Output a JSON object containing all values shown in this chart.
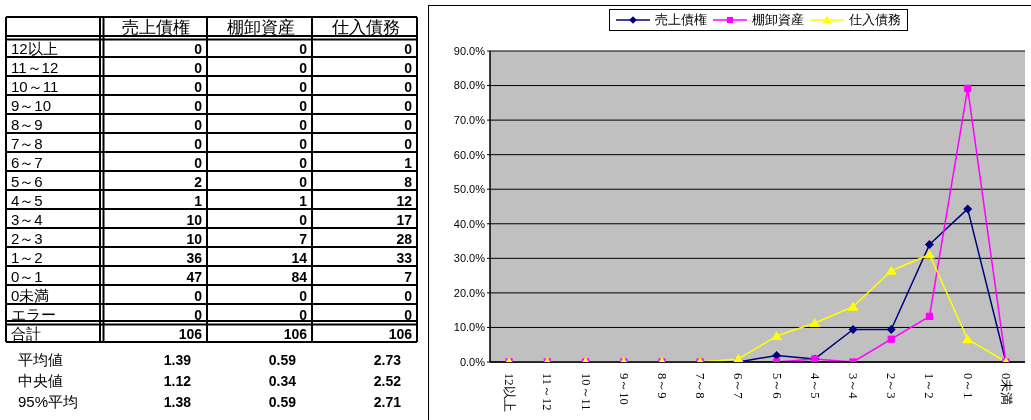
{
  "chart_data": [
    {
      "type": "heatmap",
      "categories": [
        "売上債権",
        "棚卸資産",
        "仕入債務"
      ],
      "y_categories": [
        "12以上",
        "11～12",
        "10～11",
        "9～10",
        "8～9",
        "7～8",
        "6～7",
        "5～6",
        "4～5",
        "3～4",
        "2～3",
        "1～2",
        "0～1",
        "0未満",
        "エラー",
        "合計"
      ],
      "cells": [
        [
          0,
          0,
          0
        ],
        [
          0,
          0,
          0
        ],
        [
          0,
          0,
          0
        ],
        [
          0,
          0,
          0
        ],
        [
          0,
          0,
          0
        ],
        [
          0,
          0,
          0
        ],
        [
          0,
          0,
          1
        ],
        [
          2,
          0,
          8
        ],
        [
          1,
          1,
          12
        ],
        [
          10,
          0,
          17
        ],
        [
          10,
          7,
          28
        ],
        [
          36,
          14,
          33
        ],
        [
          47,
          84,
          7
        ],
        [
          0,
          0,
          0
        ],
        [
          0,
          0,
          0
        ],
        [
          106,
          106,
          106
        ]
      ],
      "data_labels": true,
      "grid": true
    },
    {
      "type": "heatmap",
      "categories": [
        null,
        null,
        null
      ],
      "y_categories": [
        "平均値",
        "中央値",
        "95%平均"
      ],
      "cells": [
        [
          1.39,
          0.59,
          2.73
        ],
        [
          1.12,
          0.34,
          2.52
        ],
        [
          1.38,
          0.59,
          2.71
        ]
      ],
      "data_labels": true
    },
    {
      "type": "line",
      "categories": [
        "12以上",
        "11～12",
        "10～11",
        "9～10",
        "8～9",
        "7～8",
        "6～7",
        "5～6",
        "4～5",
        "3～4",
        "2～3",
        "1～2",
        "0～1",
        "0未満"
      ],
      "series": [
        {
          "name": "売上債権",
          "color": "#000080",
          "marker": "diamond",
          "values": [
            null,
            null,
            null,
            null,
            null,
            0,
            0,
            1.9,
            0.9,
            9.4,
            9.4,
            34.0,
            44.3,
            0
          ]
        },
        {
          "name": "棚卸資産",
          "color": "#ff00ff",
          "marker": "square",
          "values": [
            0,
            0,
            0,
            0,
            0,
            0,
            0,
            0,
            0.9,
            0,
            6.6,
            13.2,
            79.2,
            0
          ]
        },
        {
          "name": "仕入債務",
          "color": "#ffff00",
          "marker": "triangle",
          "values": [
            0,
            0,
            0,
            0,
            0,
            0,
            0.9,
            7.5,
            11.3,
            16.0,
            26.4,
            31.1,
            6.6,
            0
          ]
        }
      ],
      "ylim": [
        0,
        90
      ],
      "yticks": [
        {
          "value": 0,
          "label": "0.0%"
        },
        {
          "value": 10,
          "label": "10.0%"
        },
        {
          "value": 20,
          "label": "20.0%"
        },
        {
          "value": 30,
          "label": "30.0%"
        },
        {
          "value": 40,
          "label": "40.0%"
        },
        {
          "value": 50,
          "label": "50.0%"
        },
        {
          "value": 60,
          "label": "60.0%"
        },
        {
          "value": 70,
          "label": "70.0%"
        },
        {
          "value": 80,
          "label": "80.0%"
        },
        {
          "value": 90,
          "label": "90.0%"
        }
      ],
      "grid": "y",
      "legend": "top"
    }
  ]
}
